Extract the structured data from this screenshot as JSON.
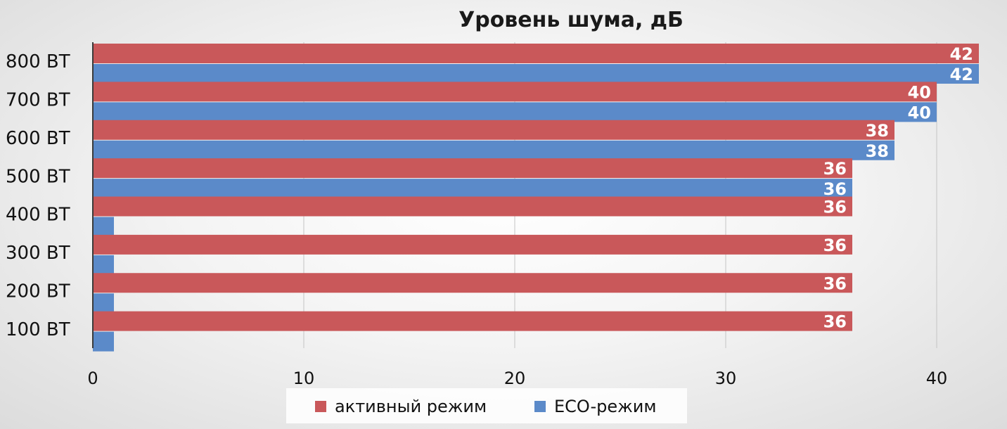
{
  "chart_data": {
    "type": "bar",
    "orientation": "horizontal",
    "title": "Уровень шума, дБ",
    "categories": [
      "800 ВТ",
      "700 ВТ",
      "600 ВТ",
      "500 ВТ",
      "400 ВТ",
      "300 ВТ",
      "200 ВТ",
      "100 ВТ"
    ],
    "series": [
      {
        "name": "активный режим",
        "color": "#c9585a",
        "values": [
          42,
          40,
          38,
          36,
          36,
          36,
          36,
          36
        ],
        "labels": [
          "42",
          "40",
          "38",
          "36",
          "36",
          "36",
          "36",
          "36"
        ]
      },
      {
        "name": "ECO-режим",
        "color": "#5b8ac9",
        "values": [
          42,
          40,
          38,
          36,
          1,
          1,
          1,
          1
        ],
        "labels": [
          "42",
          "40",
          "38",
          "36",
          null,
          null,
          null,
          null
        ]
      }
    ],
    "xlim": [
      0,
      42
    ],
    "xticks": [
      0,
      10,
      20,
      30,
      40
    ],
    "xtick_labels": [
      "0",
      "10",
      "20",
      "30",
      "40"
    ],
    "grid": "vertical",
    "legend": "bottom"
  }
}
